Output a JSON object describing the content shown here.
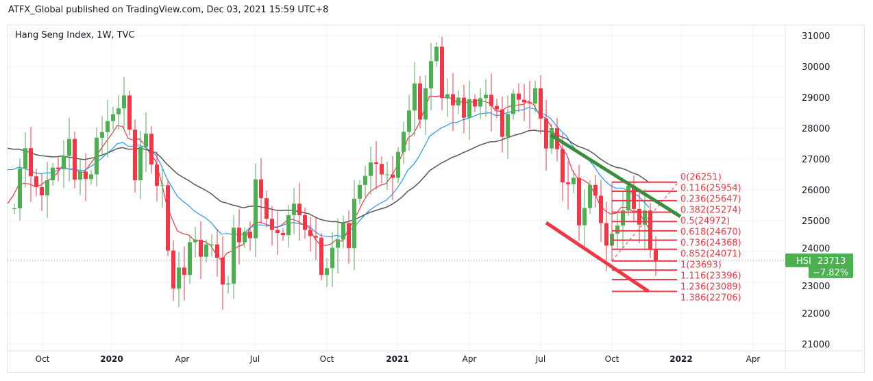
{
  "header": {
    "published": "ATFX_Global published on TradingView.com, Dec 03, 2021 15:59 UTC+8"
  },
  "chart_data": {
    "type": "candlestick",
    "title": "Hang Seng Index, 1W, TVC",
    "ylim": [
      21000,
      31000
    ],
    "y_ticks": [
      "21000",
      "22000",
      "23000",
      "24000",
      "25000",
      "26000",
      "27000",
      "28000",
      "29000",
      "30000",
      "31000"
    ],
    "x_ticks": [
      "Oct",
      "2020",
      "Apr",
      "Jul",
      "Oct",
      "2021",
      "Apr",
      "Jul",
      "Oct",
      "2022",
      "Apr"
    ],
    "first_open": 25400,
    "closes": [
      25400,
      26690,
      27350,
      26440,
      26090,
      25820,
      26310,
      26720,
      26670,
      27100,
      27650,
      26330,
      26590,
      26350,
      26500,
      27690,
      27870,
      28230,
      28450,
      28640,
      29060,
      27950,
      26310,
      27400,
      27820,
      26820,
      26130,
      26150,
      24030,
      22800,
      23480,
      23240,
      24300,
      24380,
      23830,
      24230,
      24230,
      23800,
      22930,
      22960,
      24770,
      24300,
      24640,
      24430,
      26340,
      25730,
      25060,
      24700,
      24600,
      24530,
      25180,
      25550,
      25180,
      24700,
      24500,
      24450,
      23240,
      23460,
      24120,
      24390,
      24920,
      24110,
      25710,
      26160,
      26450,
      26890,
      26840,
      26500,
      26500,
      26390,
      27230,
      27880,
      28570,
      29450,
      28280,
      29290,
      30170,
      30640,
      28980,
      29100,
      28740,
      28990,
      28340,
      28940,
      28700,
      28970,
      29080,
      28720,
      28610,
      27720,
      28460,
      29120,
      28920,
      28840,
      28800,
      29290,
      28310,
      27340,
      28000,
      27320,
      26240,
      26180,
      26390,
      24850,
      25410,
      26160,
      25810,
      24920,
      24190,
      24580,
      24840,
      25330,
      26130,
      25380,
      24870,
      25330,
      24080,
      23713
    ],
    "series": [
      {
        "name": "MA fast",
        "color": "#f23645"
      },
      {
        "name": "MA mid",
        "color": "#2196f3"
      },
      {
        "name": "MA slow",
        "color": "#555555"
      }
    ],
    "fib_levels": [
      {
        "label": "0(26251)",
        "value": 26251
      },
      {
        "label": "0.116(25954)",
        "value": 25954
      },
      {
        "label": "0.236(25647)",
        "value": 25647
      },
      {
        "label": "0.382(25274)",
        "value": 25274
      },
      {
        "label": "0.5(24972)",
        "value": 24972
      },
      {
        "label": "0.618(24670)",
        "value": 24670
      },
      {
        "label": "0.736(24368)",
        "value": 24368
      },
      {
        "label": "0.852(24071)",
        "value": 24071
      },
      {
        "label": "1(23693)",
        "value": 23693
      },
      {
        "label": "1.116(23396)",
        "value": 23396
      },
      {
        "label": "1.236(23089)",
        "value": 23089
      },
      {
        "label": "1.386(22706)",
        "value": 22706
      }
    ],
    "price_tag": {
      "symbol": "HSI",
      "price": "23713",
      "change": "−7.82%",
      "value": 23713
    },
    "colors": {
      "up": "#4caf50",
      "down": "#f23645",
      "fib": "#f23645",
      "trend_up": "#388e3c"
    }
  }
}
